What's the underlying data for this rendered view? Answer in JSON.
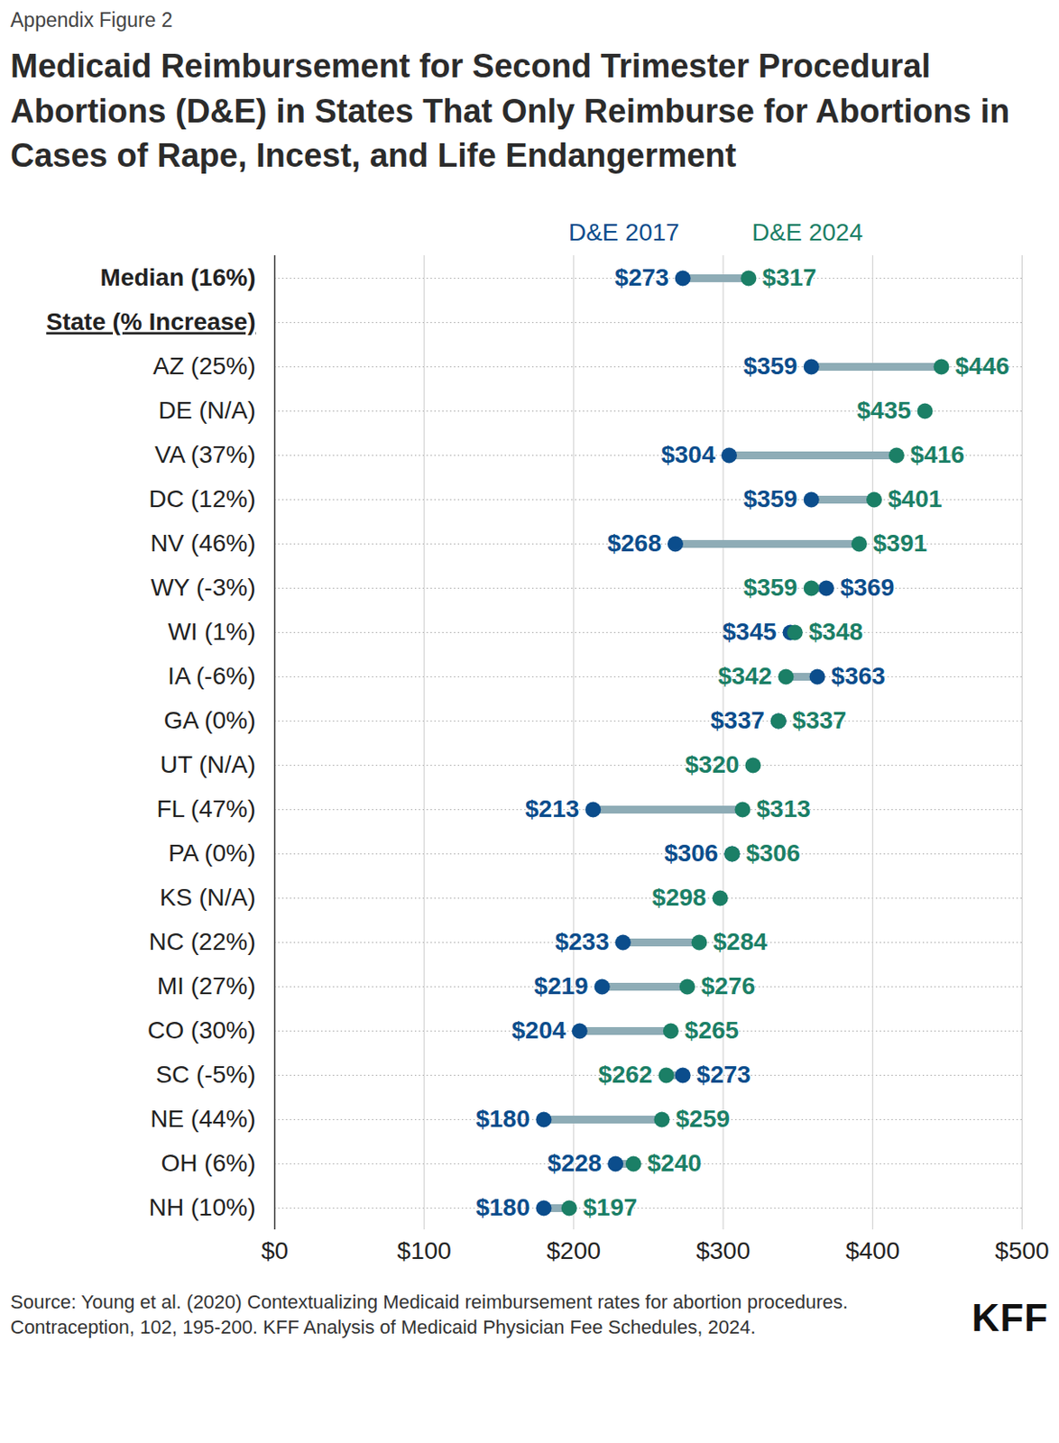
{
  "chart_data": {
    "type": "dumbbell",
    "orientation": "horizontal",
    "figure_label": "Appendix Figure 2",
    "title": "Medicaid Reimbursement for Second Trimester Procedural Abortions (D&E) in States That Only Reimburse for Abortions in Cases of Rape, Incest, and Life Endangerment",
    "categories": [
      "Median (16%)",
      "State (% Increase)",
      "AZ (25%)",
      "DE (N/A)",
      "VA (37%)",
      "DC (12%)",
      "NV (46%)",
      "WY (-3%)",
      "WI (1%)",
      "IA (-6%)",
      "GA (0%)",
      "UT (N/A)",
      "FL (47%)",
      "PA (0%)",
      "KS (N/A)",
      "NC (22%)",
      "MI (27%)",
      "CO (30%)",
      "SC (-5%)",
      "NE (44%)",
      "OH (6%)",
      "NH (10%)"
    ],
    "series": [
      {
        "name": "D&E 2017",
        "color": "#0b4d8c",
        "values": [
          273,
          null,
          359,
          null,
          304,
          359,
          268,
          369,
          345,
          363,
          337,
          null,
          213,
          306,
          null,
          233,
          219,
          204,
          273,
          180,
          228,
          180
        ],
        "value_labels": [
          "$273",
          null,
          "$359",
          null,
          "$304",
          "$359",
          "$268",
          "$369",
          "$345",
          "$363",
          "$337",
          null,
          "$213",
          "$306",
          null,
          "$233",
          "$219",
          "$204",
          "$273",
          "$180",
          "$228",
          "$180"
        ]
      },
      {
        "name": "D&E 2024",
        "color": "#1b7f66",
        "values": [
          317,
          null,
          446,
          435,
          416,
          401,
          391,
          359,
          348,
          342,
          337,
          320,
          313,
          306,
          298,
          284,
          276,
          265,
          262,
          259,
          240,
          197
        ],
        "value_labels": [
          "$317",
          null,
          "$446",
          "$435",
          "$416",
          "$401",
          "$391",
          "$359",
          "$348",
          "$342",
          "$337",
          "$320",
          "$313",
          "$306",
          "$298",
          "$284",
          "$276",
          "$265",
          "$262",
          "$259",
          "$240",
          "$197"
        ]
      }
    ],
    "xlim": [
      0,
      500
    ],
    "xticks": [
      {
        "value": 0,
        "label": "$0"
      },
      {
        "value": 100,
        "label": "$100"
      },
      {
        "value": 200,
        "label": "$200"
      },
      {
        "value": 300,
        "label": "$300"
      },
      {
        "value": 400,
        "label": "$400"
      },
      {
        "value": 500,
        "label": "$500"
      }
    ],
    "grid": true,
    "data_labels": true,
    "source": "Source: Young et al. (2020) Contextualizing Medicaid reimbursement rates for abortion procedures. Contraception, 102, 195-200. KFF Analysis of Medicaid Physician Fee Schedules, 2024.",
    "logo": "KFF"
  }
}
